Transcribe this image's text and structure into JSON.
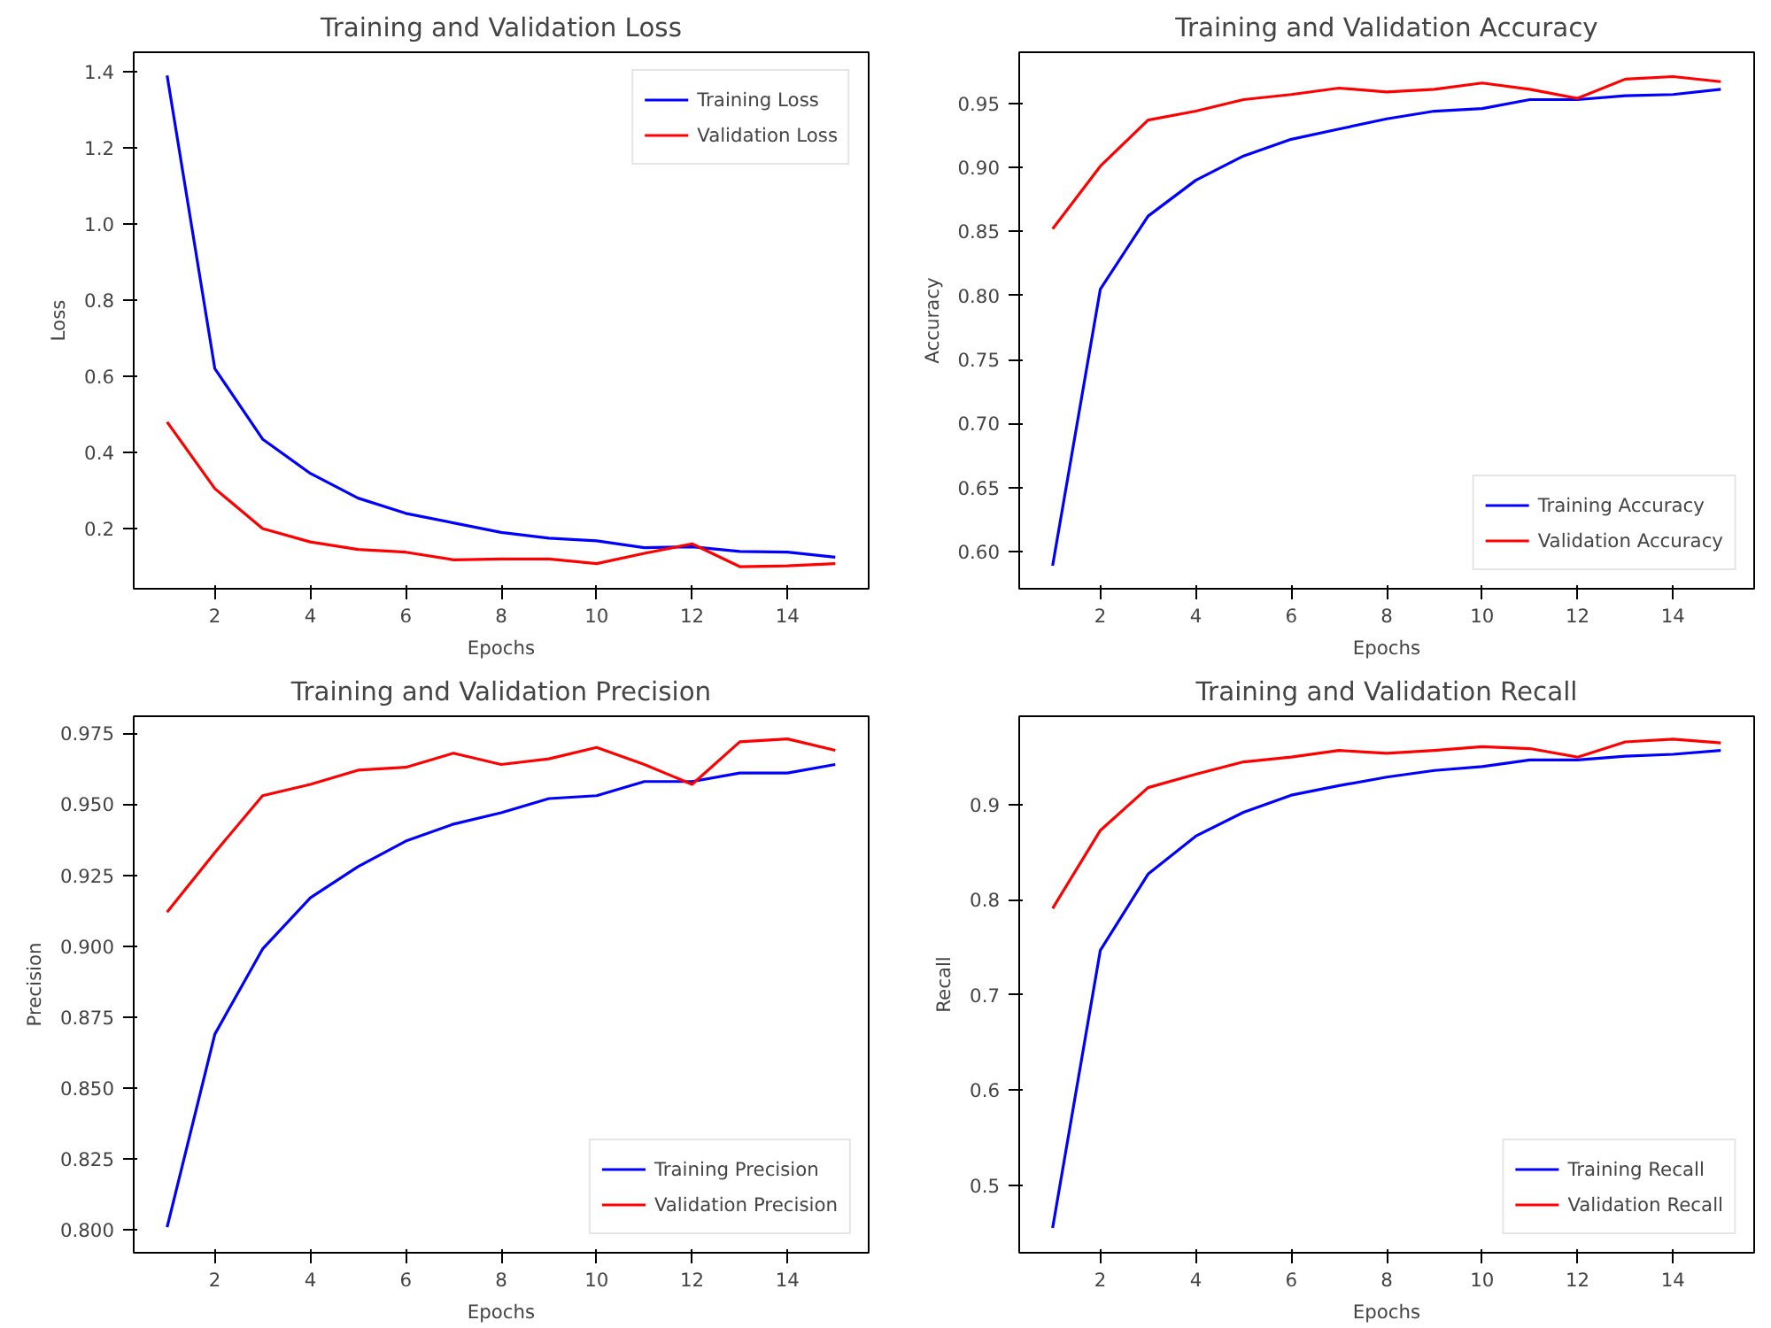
{
  "chart_data": [
    {
      "type": "line",
      "title": "Training and Validation Loss",
      "xlabel": "Epochs",
      "ylabel": "Loss",
      "x": [
        1,
        2,
        3,
        4,
        5,
        6,
        7,
        8,
        9,
        10,
        11,
        12,
        13,
        14,
        15
      ],
      "xlim": [
        0.3,
        15.7
      ],
      "xticks": [
        2,
        4,
        6,
        8,
        10,
        12,
        14
      ],
      "ylim": [
        0.042,
        1.451
      ],
      "yticks": [
        {
          "value": 0.2,
          "label": "0.2"
        },
        {
          "value": 0.4,
          "label": "0.4"
        },
        {
          "value": 0.6,
          "label": "0.6"
        },
        {
          "value": 0.8,
          "label": "0.8"
        },
        {
          "value": 1.0,
          "label": "1.0"
        },
        {
          "value": 1.2,
          "label": "1.2"
        },
        {
          "value": 1.4,
          "label": "1.4"
        }
      ],
      "legend": "top right",
      "series": [
        {
          "name": "Training Loss",
          "color": "#0000ff",
          "values": [
            1.39,
            0.62,
            0.435,
            0.345,
            0.28,
            0.24,
            0.215,
            0.19,
            0.175,
            0.168,
            0.15,
            0.152,
            0.14,
            0.138,
            0.125
          ]
        },
        {
          "name": "Validation Loss",
          "color": "#ff0000",
          "values": [
            0.48,
            0.305,
            0.2,
            0.165,
            0.145,
            0.138,
            0.118,
            0.12,
            0.12,
            0.108,
            0.135,
            0.16,
            0.1,
            0.102,
            0.108
          ]
        }
      ]
    },
    {
      "type": "line",
      "title": "Training and Validation Accuracy",
      "xlabel": "Epochs",
      "ylabel": "Accuracy",
      "x": [
        1,
        2,
        3,
        4,
        5,
        6,
        7,
        8,
        9,
        10,
        11,
        12,
        13,
        14,
        15
      ],
      "xlim": [
        0.3,
        15.7
      ],
      "xticks": [
        2,
        4,
        6,
        8,
        10,
        12,
        14
      ],
      "ylim": [
        0.571,
        0.99
      ],
      "yticks": [
        {
          "value": 0.6,
          "label": "0.60"
        },
        {
          "value": 0.65,
          "label": "0.65"
        },
        {
          "value": 0.7,
          "label": "0.70"
        },
        {
          "value": 0.75,
          "label": "0.75"
        },
        {
          "value": 0.8,
          "label": "0.80"
        },
        {
          "value": 0.85,
          "label": "0.85"
        },
        {
          "value": 0.9,
          "label": "0.90"
        },
        {
          "value": 0.95,
          "label": "0.95"
        }
      ],
      "legend": "bottom right",
      "series": [
        {
          "name": "Training Accuracy",
          "color": "#0000ff",
          "values": [
            0.589,
            0.805,
            0.862,
            0.89,
            0.909,
            0.922,
            0.93,
            0.938,
            0.944,
            0.946,
            0.953,
            0.953,
            0.956,
            0.957,
            0.961
          ]
        },
        {
          "name": "Validation Accuracy",
          "color": "#ff0000",
          "values": [
            0.852,
            0.901,
            0.937,
            0.944,
            0.953,
            0.957,
            0.962,
            0.959,
            0.961,
            0.966,
            0.961,
            0.954,
            0.969,
            0.971,
            0.967
          ]
        }
      ]
    },
    {
      "type": "line",
      "title": "Training and Validation Precision",
      "xlabel": "Epochs",
      "ylabel": "Precision",
      "x": [
        1,
        2,
        3,
        4,
        5,
        6,
        7,
        8,
        9,
        10,
        11,
        12,
        13,
        14,
        15
      ],
      "xlim": [
        0.3,
        15.7
      ],
      "xticks": [
        2,
        4,
        6,
        8,
        10,
        12,
        14
      ],
      "ylim": [
        0.792,
        0.981
      ],
      "yticks": [
        {
          "value": 0.8,
          "label": "0.800"
        },
        {
          "value": 0.825,
          "label": "0.825"
        },
        {
          "value": 0.85,
          "label": "0.850"
        },
        {
          "value": 0.875,
          "label": "0.875"
        },
        {
          "value": 0.9,
          "label": "0.900"
        },
        {
          "value": 0.925,
          "label": "0.925"
        },
        {
          "value": 0.95,
          "label": "0.950"
        },
        {
          "value": 0.975,
          "label": "0.975"
        }
      ],
      "legend": "bottom right",
      "series": [
        {
          "name": "Training Precision",
          "color": "#0000ff",
          "values": [
            0.801,
            0.869,
            0.899,
            0.917,
            0.928,
            0.937,
            0.943,
            0.947,
            0.952,
            0.953,
            0.958,
            0.958,
            0.961,
            0.961,
            0.964
          ]
        },
        {
          "name": "Validation Precision",
          "color": "#ff0000",
          "values": [
            0.912,
            0.933,
            0.953,
            0.957,
            0.962,
            0.963,
            0.968,
            0.964,
            0.966,
            0.97,
            0.964,
            0.957,
            0.972,
            0.973,
            0.969
          ]
        }
      ]
    },
    {
      "type": "line",
      "title": "Training and Validation Recall",
      "xlabel": "Epochs",
      "ylabel": "Recall",
      "x": [
        1,
        2,
        3,
        4,
        5,
        6,
        7,
        8,
        9,
        10,
        11,
        12,
        13,
        14,
        15
      ],
      "xlim": [
        0.3,
        15.7
      ],
      "xticks": [
        2,
        4,
        6,
        8,
        10,
        12,
        14
      ],
      "ylim": [
        0.429,
        0.993
      ],
      "yticks": [
        0.5,
        0.6,
        0.7,
        0.8,
        0.9
      ],
      "legend": "bottom right",
      "series": [
        {
          "name": "Training Recall",
          "color": "#0000ff",
          "values": [
            0.455,
            0.747,
            0.827,
            0.867,
            0.892,
            0.91,
            0.92,
            0.929,
            0.936,
            0.94,
            0.947,
            0.947,
            0.951,
            0.953,
            0.957
          ]
        },
        {
          "name": "Validation Recall",
          "color": "#ff0000",
          "values": [
            0.791,
            0.873,
            0.918,
            0.932,
            0.945,
            0.95,
            0.957,
            0.954,
            0.957,
            0.961,
            0.959,
            0.95,
            0.966,
            0.969,
            0.965
          ]
        }
      ]
    }
  ]
}
